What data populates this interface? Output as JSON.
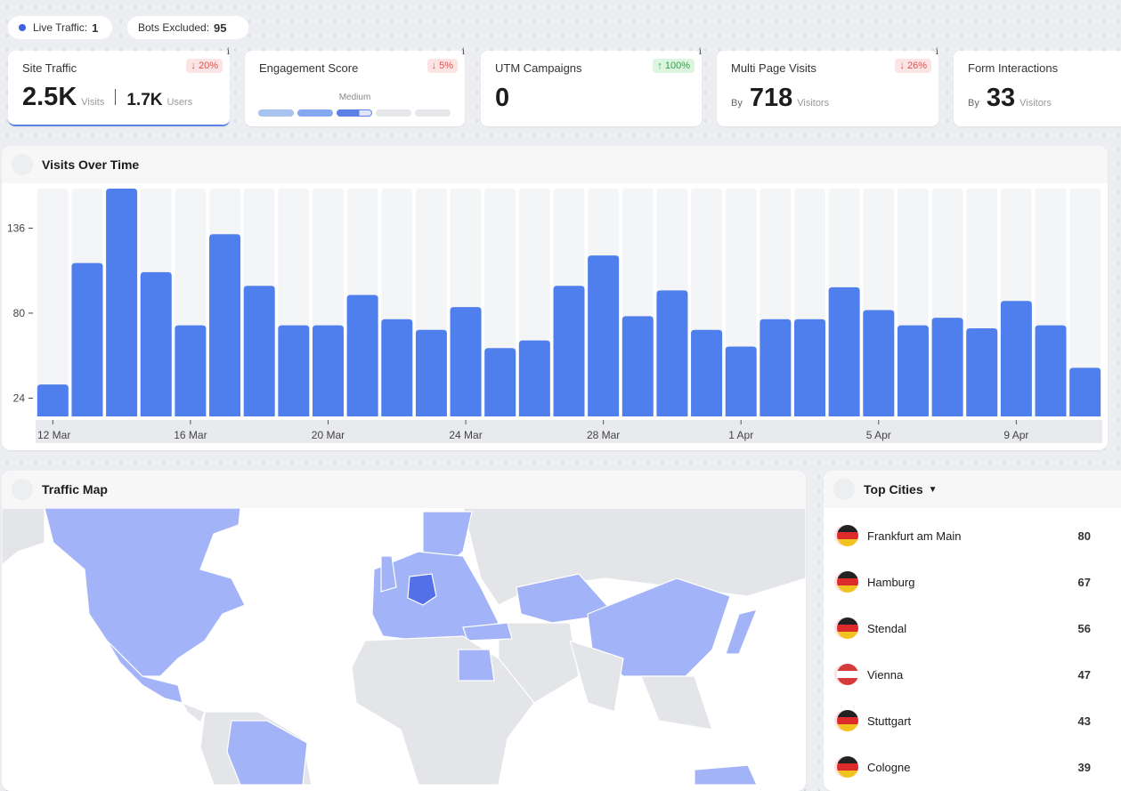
{
  "header": {
    "live_traffic": {
      "label": "Live Traffic:",
      "value": 1
    },
    "bots_excluded": {
      "label": "Bots Excluded:",
      "value": 95
    }
  },
  "info_icon": "i",
  "cards": [
    {
      "title": "Site Traffic",
      "change": "↓ 20%",
      "value": "2.5K",
      "unit": "Visits",
      "secondary_value": "1.7K",
      "secondary_unit": "Users"
    },
    {
      "title": "Engagement Score",
      "change": "↓ 5%",
      "level": "Medium"
    },
    {
      "title": "UTM Campaigns",
      "change": "↑ 100%",
      "value": 0
    },
    {
      "title": "Multi Page Visits",
      "change": "↓ 26%",
      "prefix": "By",
      "value": 718,
      "unit": "Visitors"
    },
    {
      "title": "Form Interactions",
      "prefix": "By",
      "value": 33,
      "unit": "Visitors"
    }
  ],
  "chart_data": {
    "type": "bar",
    "title": "Visits Over Time",
    "color": "#4f7fec",
    "categories": [
      "12 Mar",
      null,
      null,
      null,
      "16 Mar",
      null,
      null,
      null,
      "20 Mar",
      null,
      null,
      null,
      "24 Mar",
      null,
      null,
      null,
      "28 Mar",
      null,
      null,
      null,
      "1 Apr",
      null,
      null,
      null,
      "5 Apr",
      null,
      null,
      null,
      "9 Apr",
      null,
      null
    ],
    "values": [
      33,
      113,
      162,
      107,
      72,
      132,
      98,
      72,
      72,
      92,
      76,
      69,
      84,
      57,
      62,
      98,
      118,
      78,
      95,
      69,
      58,
      76,
      76,
      97,
      82,
      72,
      77,
      70,
      88,
      72,
      44
    ],
    "ylim": [
      12,
      162
    ],
    "yticks": [
      24,
      80,
      136
    ]
  },
  "map": {
    "title": "Traffic Map"
  },
  "top_cities": {
    "title": "Top Cities",
    "rows": [
      {
        "city": "Frankfurt am Main",
        "visits": 80
      },
      {
        "city": "Hamburg",
        "visits": 67
      },
      {
        "city": "Stendal",
        "visits": 56
      },
      {
        "city": "Vienna",
        "visits": 47
      },
      {
        "city": "Stuttgart",
        "visits": 43
      },
      {
        "city": "Cologne",
        "visits": 39
      }
    ]
  }
}
